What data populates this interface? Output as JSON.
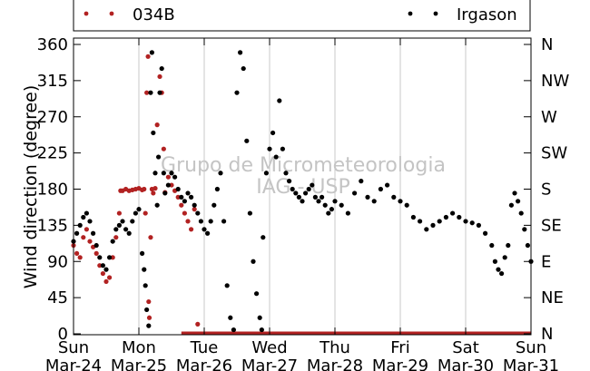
{
  "chart_data": {
    "type": "scatter",
    "ylabel": "Wind direction (degree)",
    "ylim": [
      0,
      360
    ],
    "y_ticks": [
      0,
      45,
      90,
      135,
      180,
      225,
      270,
      315,
      360
    ],
    "x_range_days": [
      0,
      7
    ],
    "x_tick_days": [
      0,
      1,
      2,
      3,
      4,
      5,
      6,
      7
    ],
    "x_ticks": [
      {
        "day": "Sun",
        "date": "Mar-24"
      },
      {
        "day": "Mon",
        "date": "Mar-25"
      },
      {
        "day": "Tue",
        "date": "Mar-26"
      },
      {
        "day": "Wed",
        "date": "Mar-27"
      },
      {
        "day": "Thu",
        "date": "Mar-28"
      },
      {
        "day": "Fri",
        "date": "Mar-29"
      },
      {
        "day": "Sat",
        "date": "Mar-30"
      },
      {
        "day": "Sun",
        "date": "Mar-31"
      }
    ],
    "y2_ticks": [
      {
        "value": 0,
        "label": "N"
      },
      {
        "value": 45,
        "label": "NE"
      },
      {
        "value": 90,
        "label": "E"
      },
      {
        "value": 135,
        "label": "SE"
      },
      {
        "value": 180,
        "label": "S"
      },
      {
        "value": 225,
        "label": "SW"
      },
      {
        "value": 270,
        "label": "W"
      },
      {
        "value": 315,
        "label": "NW"
      },
      {
        "value": 360,
        "label": "N"
      }
    ],
    "grid": "vertical",
    "legend_position": "top",
    "watermark": [
      "Grupo de Micrometeorologia",
      "IAG - USP"
    ],
    "series": [
      {
        "name": "034B",
        "color": "#b22222",
        "points": [
          [
            0.0,
            110
          ],
          [
            0.05,
            100
          ],
          [
            0.1,
            95
          ],
          [
            0.15,
            120
          ],
          [
            0.2,
            130
          ],
          [
            0.25,
            115
          ],
          [
            0.3,
            108
          ],
          [
            0.35,
            100
          ],
          [
            0.4,
            85
          ],
          [
            0.45,
            75
          ],
          [
            0.5,
            65
          ],
          [
            0.55,
            70
          ],
          [
            0.6,
            95
          ],
          [
            0.65,
            120
          ],
          [
            0.7,
            150
          ],
          [
            0.72,
            178
          ],
          [
            0.75,
            178
          ],
          [
            0.8,
            180
          ],
          [
            0.85,
            178
          ],
          [
            0.9,
            179
          ],
          [
            0.95,
            180
          ],
          [
            1.0,
            181
          ],
          [
            1.05,
            179
          ],
          [
            1.08,
            180
          ],
          [
            1.1,
            150
          ],
          [
            1.12,
            300
          ],
          [
            1.14,
            345
          ],
          [
            1.15,
            40
          ],
          [
            1.16,
            20
          ],
          [
            1.18,
            120
          ],
          [
            1.2,
            180
          ],
          [
            1.22,
            175
          ],
          [
            1.25,
            181
          ],
          [
            1.28,
            260
          ],
          [
            1.32,
            320
          ],
          [
            1.35,
            300
          ],
          [
            1.38,
            230
          ],
          [
            1.4,
            176
          ],
          [
            1.45,
            195
          ],
          [
            1.5,
            185
          ],
          [
            1.55,
            178
          ],
          [
            1.6,
            170
          ],
          [
            1.65,
            160
          ],
          [
            1.7,
            150
          ],
          [
            1.75,
            140
          ],
          [
            1.8,
            130
          ],
          [
            1.85,
            155
          ],
          [
            1.9,
            12
          ]
        ],
        "flat_segment": {
          "from": 1.65,
          "to": 7.0,
          "value": 0
        }
      },
      {
        "name": "Irgason",
        "color": "#000000",
        "points": [
          [
            0.0,
            115
          ],
          [
            0.05,
            125
          ],
          [
            0.1,
            135
          ],
          [
            0.15,
            145
          ],
          [
            0.2,
            150
          ],
          [
            0.25,
            140
          ],
          [
            0.3,
            125
          ],
          [
            0.35,
            110
          ],
          [
            0.4,
            95
          ],
          [
            0.45,
            85
          ],
          [
            0.5,
            80
          ],
          [
            0.55,
            95
          ],
          [
            0.6,
            115
          ],
          [
            0.65,
            130
          ],
          [
            0.7,
            135
          ],
          [
            0.75,
            140
          ],
          [
            0.8,
            130
          ],
          [
            0.85,
            125
          ],
          [
            0.9,
            140
          ],
          [
            0.95,
            150
          ],
          [
            1.0,
            155
          ],
          [
            1.05,
            100
          ],
          [
            1.08,
            80
          ],
          [
            1.1,
            60
          ],
          [
            1.12,
            30
          ],
          [
            1.15,
            10
          ],
          [
            1.18,
            300
          ],
          [
            1.2,
            350
          ],
          [
            1.22,
            250
          ],
          [
            1.25,
            200
          ],
          [
            1.28,
            160
          ],
          [
            1.3,
            220
          ],
          [
            1.32,
            300
          ],
          [
            1.35,
            330
          ],
          [
            1.38,
            200
          ],
          [
            1.4,
            175
          ],
          [
            1.45,
            185
          ],
          [
            1.5,
            200
          ],
          [
            1.55,
            195
          ],
          [
            1.6,
            180
          ],
          [
            1.65,
            170
          ],
          [
            1.7,
            165
          ],
          [
            1.75,
            175
          ],
          [
            1.8,
            170
          ],
          [
            1.85,
            160
          ],
          [
            1.9,
            150
          ],
          [
            1.95,
            140
          ],
          [
            2.0,
            130
          ],
          [
            2.05,
            125
          ],
          [
            2.1,
            140
          ],
          [
            2.15,
            160
          ],
          [
            2.2,
            180
          ],
          [
            2.25,
            200
          ],
          [
            2.3,
            140
          ],
          [
            2.35,
            60
          ],
          [
            2.4,
            20
          ],
          [
            2.45,
            5
          ],
          [
            2.5,
            300
          ],
          [
            2.55,
            350
          ],
          [
            2.6,
            330
          ],
          [
            2.65,
            240
          ],
          [
            2.7,
            150
          ],
          [
            2.75,
            90
          ],
          [
            2.8,
            50
          ],
          [
            2.85,
            20
          ],
          [
            2.88,
            5
          ],
          [
            2.9,
            120
          ],
          [
            2.95,
            200
          ],
          [
            3.0,
            230
          ],
          [
            3.05,
            250
          ],
          [
            3.1,
            220
          ],
          [
            3.15,
            290
          ],
          [
            3.2,
            230
          ],
          [
            3.25,
            200
          ],
          [
            3.3,
            190
          ],
          [
            3.35,
            180
          ],
          [
            3.4,
            175
          ],
          [
            3.45,
            170
          ],
          [
            3.5,
            165
          ],
          [
            3.55,
            175
          ],
          [
            3.6,
            180
          ],
          [
            3.65,
            185
          ],
          [
            3.7,
            170
          ],
          [
            3.75,
            165
          ],
          [
            3.8,
            170
          ],
          [
            3.85,
            160
          ],
          [
            3.9,
            150
          ],
          [
            3.95,
            155
          ],
          [
            4.0,
            165
          ],
          [
            4.1,
            160
          ],
          [
            4.2,
            150
          ],
          [
            4.3,
            175
          ],
          [
            4.4,
            190
          ],
          [
            4.5,
            170
          ],
          [
            4.6,
            165
          ],
          [
            4.7,
            180
          ],
          [
            4.8,
            185
          ],
          [
            4.9,
            170
          ],
          [
            5.0,
            165
          ],
          [
            5.1,
            160
          ],
          [
            5.2,
            145
          ],
          [
            5.3,
            140
          ],
          [
            5.4,
            130
          ],
          [
            5.5,
            135
          ],
          [
            5.6,
            140
          ],
          [
            5.7,
            145
          ],
          [
            5.8,
            150
          ],
          [
            5.9,
            145
          ],
          [
            6.0,
            140
          ],
          [
            6.1,
            138
          ],
          [
            6.2,
            135
          ],
          [
            6.3,
            125
          ],
          [
            6.4,
            110
          ],
          [
            6.45,
            90
          ],
          [
            6.5,
            80
          ],
          [
            6.55,
            75
          ],
          [
            6.6,
            95
          ],
          [
            6.65,
            110
          ],
          [
            6.7,
            160
          ],
          [
            6.75,
            175
          ],
          [
            6.8,
            165
          ],
          [
            6.85,
            150
          ],
          [
            6.9,
            130
          ],
          [
            6.95,
            110
          ],
          [
            7.0,
            90
          ]
        ]
      }
    ]
  }
}
